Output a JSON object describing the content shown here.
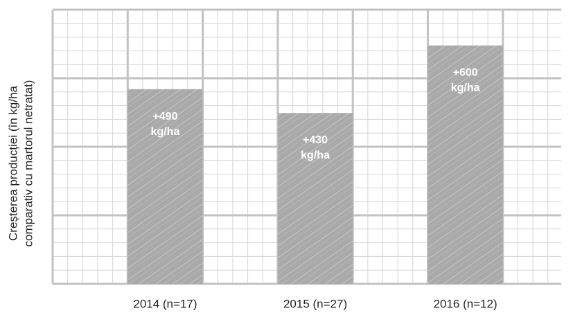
{
  "chart_data": {
    "type": "bar",
    "ylabel": [
      "Creșterea producției (în kg/ha",
      "comparativ cu martorul netratat)"
    ],
    "categories": [
      "2014 (n=17)",
      "2015 (n=27)",
      "2016 (n=12)"
    ],
    "values": [
      490,
      430,
      600
    ],
    "value_labels": [
      "+490 kg/ha",
      "+430 kg/ha",
      "+600 kg/ha"
    ],
    "color": "#a9a9a9",
    "ylim": [
      0,
      690
    ],
    "grid": true
  }
}
